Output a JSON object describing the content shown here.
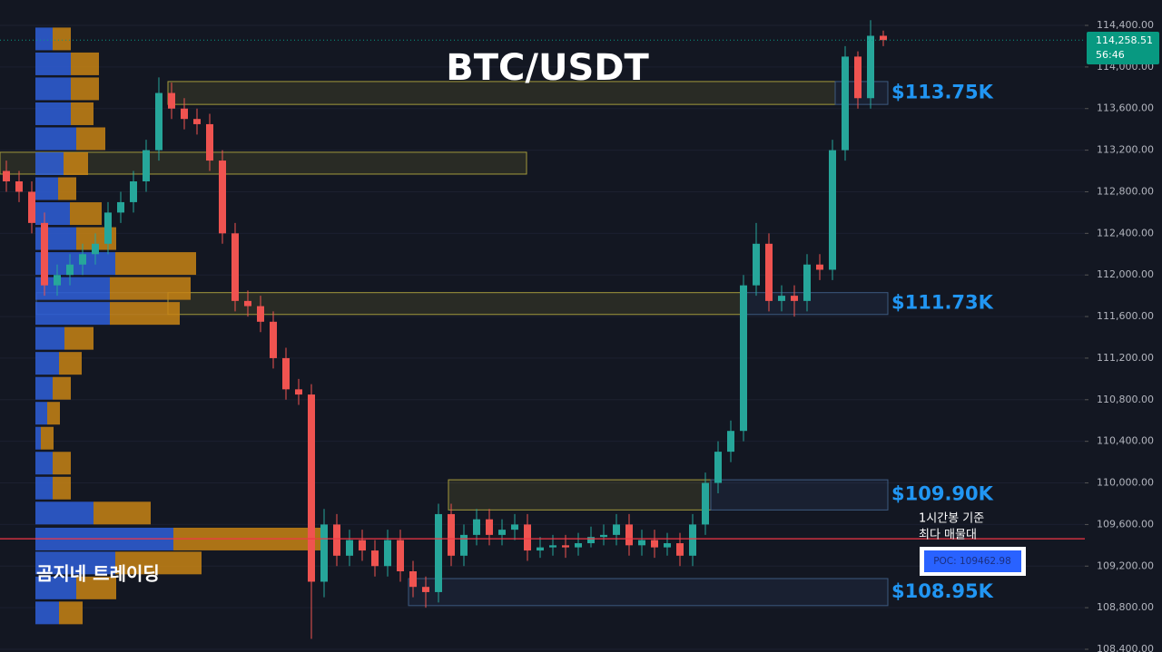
{
  "chart_data": {
    "type": "candlestick",
    "title": "BTC/USDT",
    "watermark": "곰지네 트레이딩",
    "ylim": [
      108400,
      114400
    ],
    "yticks": [
      {
        "value": 108400,
        "label": "108,400.00"
      },
      {
        "value": 108800,
        "label": "108,800.00"
      },
      {
        "value": 109200,
        "label": "109,200.00"
      },
      {
        "value": 109600,
        "label": "109,600.00"
      },
      {
        "value": 110000,
        "label": "110,000.00"
      },
      {
        "value": 110400,
        "label": "110,400.00"
      },
      {
        "value": 110800,
        "label": "110,800.00"
      },
      {
        "value": 111200,
        "label": "111,200.00"
      },
      {
        "value": 111600,
        "label": "111,600.00"
      },
      {
        "value": 112000,
        "label": "112,000.00"
      },
      {
        "value": 112400,
        "label": "112,400.00"
      },
      {
        "value": 112800,
        "label": "112,800.00"
      },
      {
        "value": 113200,
        "label": "113,200.00"
      },
      {
        "value": 113600,
        "label": "113,600.00"
      },
      {
        "value": 114000,
        "label": "114,000.00"
      },
      {
        "value": 114400,
        "label": "114,400.00"
      }
    ],
    "grid": true,
    "up_color": "#26a69a",
    "down_color": "#ef5350",
    "open": [
      113000,
      112900,
      112800,
      112500,
      111900,
      112000,
      112100,
      112200,
      112300,
      112600,
      112700,
      112900,
      113200,
      113750,
      113600,
      113500,
      113450,
      113100,
      112400,
      111750,
      111700,
      111550,
      111200,
      110900,
      110850,
      109050,
      109600,
      109300,
      109450,
      109350,
      109200,
      109450,
      109150,
      109000,
      108950,
      109700,
      109300,
      109500,
      109650,
      109500,
      109550,
      109600,
      109350,
      109380,
      109400,
      109380,
      109420,
      109480,
      109500,
      109600,
      109400,
      109450,
      109380,
      109420,
      109300,
      109600,
      110000,
      110300,
      110500,
      111900,
      112300,
      111750,
      111800,
      111750,
      112100,
      112050,
      113200,
      114100,
      113700,
      114300
    ],
    "high": [
      113100,
      113000,
      112900,
      112600,
      112100,
      112200,
      112300,
      112400,
      112700,
      112800,
      113000,
      113300,
      113900,
      113850,
      113700,
      113600,
      113550,
      113200,
      112500,
      111850,
      111800,
      111650,
      111300,
      111000,
      110950,
      109750,
      109700,
      109550,
      109550,
      109450,
      109550,
      109550,
      109250,
      109100,
      109800,
      109800,
      109600,
      109750,
      109750,
      109650,
      109700,
      109700,
      109480,
      109500,
      109500,
      109520,
      109580,
      109600,
      109700,
      109700,
      109550,
      109550,
      109520,
      109520,
      109700,
      110100,
      110400,
      110600,
      112000,
      112500,
      112400,
      111900,
      111900,
      112200,
      112200,
      113300,
      114200,
      114150,
      114450,
      114350
    ],
    "low": [
      112800,
      112700,
      112400,
      111800,
      111800,
      111900,
      112000,
      112100,
      112200,
      112500,
      112600,
      112800,
      113100,
      113500,
      113400,
      113350,
      113000,
      112300,
      111650,
      111600,
      111450,
      111100,
      110800,
      110750,
      108500,
      108900,
      109200,
      109200,
      109250,
      109100,
      109100,
      109050,
      108900,
      108800,
      108850,
      109200,
      109200,
      109400,
      109400,
      109400,
      109450,
      109250,
      109280,
      109300,
      109280,
      109300,
      109380,
      109400,
      109400,
      109300,
      109300,
      109280,
      109300,
      109200,
      109200,
      109500,
      109900,
      110200,
      110400,
      111800,
      111650,
      111650,
      111600,
      111650,
      111950,
      111950,
      113100,
      113600,
      113600,
      114200
    ],
    "close": [
      112900,
      112800,
      112500,
      111900,
      112000,
      112100,
      112200,
      112300,
      112600,
      112700,
      112900,
      113200,
      113750,
      113600,
      113500,
      113450,
      113100,
      112400,
      111750,
      111700,
      111550,
      111200,
      110900,
      110850,
      109050,
      109600,
      109300,
      109450,
      109350,
      109200,
      109450,
      109150,
      109000,
      108950,
      109700,
      109300,
      109500,
      109650,
      109500,
      109550,
      109600,
      109350,
      109380,
      109400,
      109380,
      109420,
      109480,
      109500,
      109600,
      109400,
      109450,
      109380,
      109420,
      109300,
      109600,
      110000,
      110300,
      110500,
      111900,
      112300,
      111750,
      111800,
      111750,
      112100,
      112050,
      113200,
      114100,
      113700,
      114300,
      114258.51
    ],
    "last_price": {
      "value": 114258.51,
      "label": "114,258.51"
    },
    "countdown": "56:46",
    "zones": [
      {
        "low": 113640,
        "high": 113860,
        "label": "$113.75K"
      },
      {
        "low": 112970,
        "high": 113180
      },
      {
        "low": 111620,
        "high": 111830,
        "label": "$111.73K"
      },
      {
        "low": 109740,
        "high": 110030,
        "label": "$109.90K"
      },
      {
        "low": 108820,
        "high": 109080,
        "label": "$108.95K"
      }
    ],
    "poc": {
      "value": 109462.98,
      "label": "POC: 109462.98"
    },
    "poc_note": [
      "1시간봉 기준",
      "최다 매물대"
    ],
    "volume_profile": {
      "buy_color": "#2f5fd8",
      "sell_color": "#c88414",
      "price": [
        114270,
        114030,
        113790,
        113550,
        113310,
        113070,
        112830,
        112590,
        112350,
        112110,
        111870,
        111630,
        111390,
        111150,
        110910,
        110670,
        110430,
        110190,
        109950,
        109710,
        109460,
        109230,
        108990,
        108750
      ],
      "buy": [
        19,
        39,
        39,
        39,
        45,
        31,
        25,
        38,
        45,
        88,
        82,
        82,
        32,
        26,
        19,
        13,
        6,
        19,
        19,
        64,
        152,
        88,
        45,
        26
      ],
      "sell": [
        20,
        31,
        31,
        25,
        32,
        27,
        20,
        35,
        44,
        89,
        89,
        77,
        32,
        25,
        20,
        14,
        14,
        20,
        20,
        63,
        164,
        95,
        44,
        26
      ]
    }
  }
}
